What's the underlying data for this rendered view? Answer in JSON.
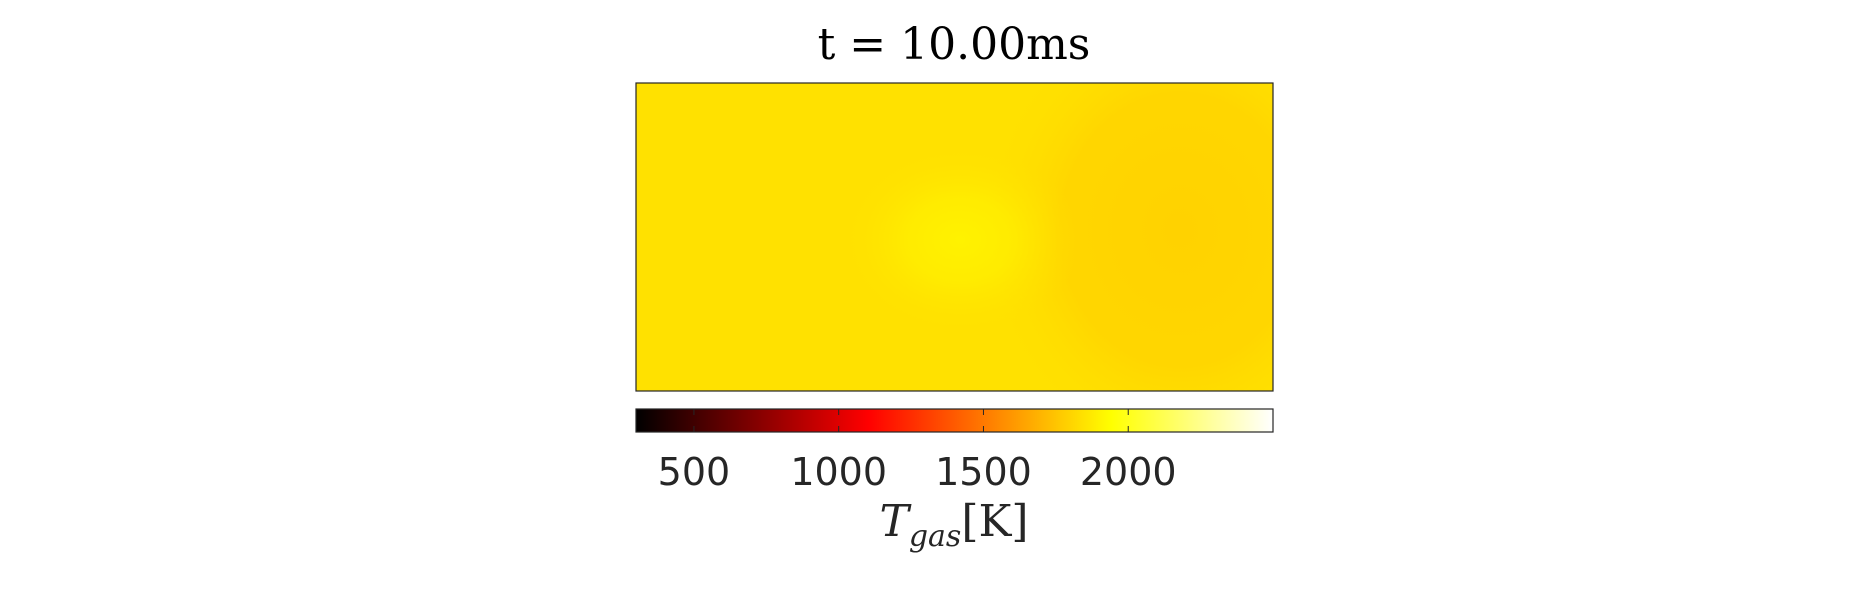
{
  "chart_data": {
    "type": "heatmap",
    "title": "t = 10.00ms",
    "colormap": "hot",
    "colorbar": {
      "orientation": "horizontal",
      "location": "bottom",
      "label_main": "T",
      "label_sub": "gas",
      "label_unit": "[K]",
      "range": [
        300,
        2500
      ],
      "ticks": [
        500,
        1000,
        1500,
        2000
      ],
      "tick_labels": [
        "500",
        "1000",
        "1500",
        "2000"
      ]
    },
    "field": {
      "background_value": 2050,
      "hotspot_value": 2140,
      "right_region_value": 1980,
      "colors": {
        "background": "#ffe100",
        "hotspot": "#fff200",
        "right_region": "#ffd200"
      }
    },
    "grid": false
  }
}
